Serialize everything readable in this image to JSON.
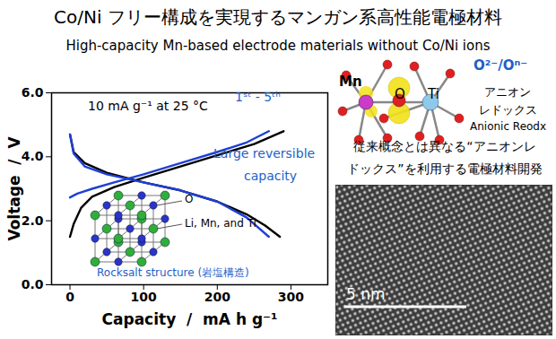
{
  "figure": {
    "title": "Co/Ni フリー構成を実現するマンガン系高性能電極材料",
    "subtitle": "High-capacity Mn-based electrode materials without Co/Ni ions"
  },
  "chart_data": {
    "type": "line",
    "x_label": "Capacity  /  mA h g⁻¹",
    "y_label": "Voltage  /  V",
    "xlim": [
      -25,
      350
    ],
    "xticks": [
      0,
      100,
      200,
      300
    ],
    "ylim": [
      0,
      6
    ],
    "yticks": [
      {
        "value": 0,
        "label": "0.0"
      },
      {
        "value": 2,
        "label": "2.0"
      },
      {
        "value": 4,
        "label": "4.0"
      },
      {
        "value": 6,
        "label": "6.0"
      }
    ],
    "series": [
      {
        "color": "#000000",
        "x": [
          0,
          5,
          15,
          30,
          60,
          100,
          150,
          200,
          250,
          290
        ],
        "values": [
          1.5,
          1.9,
          2.4,
          2.75,
          3.05,
          3.35,
          3.7,
          4.05,
          4.4,
          4.8
        ]
      },
      {
        "color": "#000000",
        "x": [
          0,
          5,
          20,
          50,
          100,
          150,
          200,
          240,
          265,
          285
        ],
        "values": [
          4.7,
          4.15,
          3.8,
          3.5,
          3.2,
          2.95,
          2.6,
          2.2,
          1.85,
          1.5
        ]
      },
      {
        "color": "#1f3fd6",
        "x": [
          0,
          10,
          30,
          60,
          100,
          150,
          200,
          240,
          270
        ],
        "values": [
          2.73,
          2.85,
          3.0,
          3.2,
          3.45,
          3.8,
          4.15,
          4.45,
          4.8
        ]
      },
      {
        "color": "#1f3fd6",
        "x": [
          0,
          5,
          20,
          50,
          100,
          150,
          200,
          240,
          270
        ],
        "values": [
          4.7,
          4.1,
          3.7,
          3.45,
          3.2,
          2.95,
          2.6,
          2.1,
          1.5
        ]
      }
    ],
    "annotations": [
      {
        "text": "10 mA g⁻¹ at 25 °C",
        "color": "#000000"
      },
      {
        "text": "1ˢᵗ - 5ᵗʰ",
        "color": "#1f5fc8"
      },
      {
        "text": "Large reversible",
        "color": "#1f5fc8"
      },
      {
        "text": "capacity",
        "color": "#1f5fc8"
      }
    ]
  },
  "inset": {
    "labels": [
      "O",
      "Li, Mn, and Ti"
    ],
    "caption": "Rocksalt structure (岩塩構造)",
    "color": "#1f5fc8"
  },
  "redox_diagram": {
    "atoms": [
      "Mn",
      "O",
      "Ti"
    ],
    "couple": "O²⁻/Oⁿ⁻",
    "couple_color": "#1f5fc8",
    "labels": [
      "アニオン",
      "レドックス",
      "Anionic Reodx"
    ],
    "caption": [
      "従来概念とは異なる“アニオンレ",
      "ドックス”を利用する電極材料開発"
    ]
  },
  "image": {
    "scale_bar": "5 nm"
  }
}
